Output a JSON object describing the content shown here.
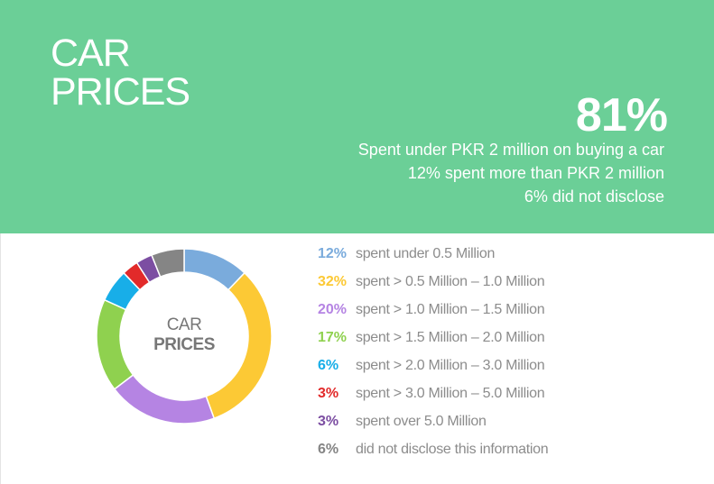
{
  "banner": {
    "title_line1": "CAR",
    "title_line2": "PRICES",
    "stat": "81%",
    "line1": "Spent under PKR 2 million on buying a car",
    "line2": "12% spent more than PKR 2 million",
    "line3": "6% did not disclose"
  },
  "donut_label": {
    "line1": "CAR",
    "line2": "PRICES"
  },
  "chart_data": {
    "type": "pie",
    "style": "donut",
    "title": "CAR PRICES",
    "unit": "%",
    "slices": [
      {
        "value": 12,
        "percent_label": "12%",
        "label": "spent under 0.5 Million",
        "color": "#7aabdc"
      },
      {
        "value": 32,
        "percent_label": "32%",
        "label": "spent > 0.5 Million – 1.0 Million",
        "color": "#fcc935"
      },
      {
        "value": 20,
        "percent_label": "20%",
        "label": "spent > 1.0 Million – 1.5 Million",
        "color": "#b584e3"
      },
      {
        "value": 17,
        "percent_label": "17%",
        "label": "spent > 1.5 Million – 2.0 Million",
        "color": "#8fd14f"
      },
      {
        "value": 6,
        "percent_label": "6%",
        "label": "spent > 2.0 Million – 3.0 Million",
        "color": "#18aee8"
      },
      {
        "value": 3,
        "percent_label": "3%",
        "label": "spent > 3.0 Million – 5.0 Million",
        "color": "#e22a2a"
      },
      {
        "value": 3,
        "percent_label": "3%",
        "label": "spent over 5.0 Million",
        "color": "#7c4ea2"
      },
      {
        "value": 6,
        "percent_label": "6%",
        "label": "did not disclose this information",
        "color": "#858585"
      }
    ],
    "legend_position": "right"
  }
}
